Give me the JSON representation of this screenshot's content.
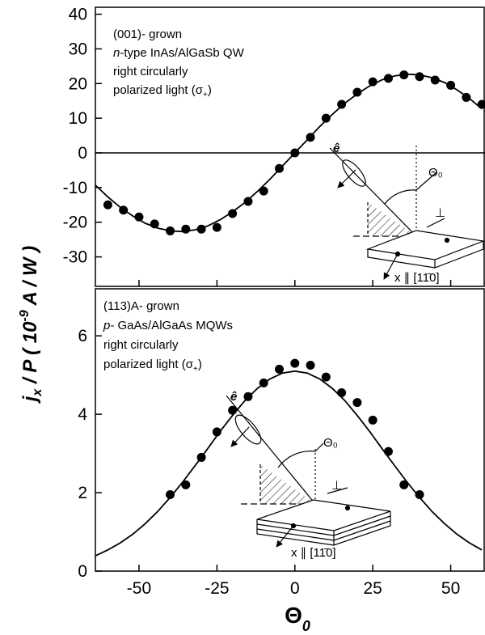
{
  "chart_data": [
    {
      "type": "scatter",
      "annotation": [
        [
          "(001)- grown"
        ],
        [
          "n",
          "-type InAs/AlGaSb QW"
        ],
        [
          "right circularly"
        ],
        [
          "polarized light (σ",
          "+",
          ")"
        ]
      ],
      "inset": {
        "e": "ê",
        "theta": "Θ₀",
        "perp": "⊥",
        "axis": "x ∥ [11̄0]"
      },
      "x": [
        -60,
        -55,
        -50,
        -45,
        -40,
        -35,
        -30,
        -25,
        -20,
        -15,
        -10,
        -5,
        0,
        5,
        10,
        15,
        20,
        25,
        30,
        35,
        40,
        45,
        50,
        55,
        60
      ],
      "values": [
        -15,
        -16.5,
        -18.5,
        -20.5,
        -22.5,
        -22,
        -22,
        -21.5,
        -17.5,
        -14,
        -11,
        -4.5,
        0,
        4.5,
        10,
        14,
        17.5,
        20.5,
        21.5,
        22.5,
        22,
        21,
        19.5,
        16,
        14
      ],
      "fit": {
        "x": [
          -64,
          -60,
          -56,
          -52,
          -48,
          -44,
          -40,
          -36,
          -32,
          -28,
          -24,
          -20,
          -16,
          -12,
          -8,
          -4,
          0,
          4,
          8,
          12,
          16,
          20,
          24,
          28,
          32,
          36,
          40,
          44,
          48,
          52,
          56,
          60
        ],
        "values": [
          -9.3,
          -12.7,
          -15.7,
          -18.2,
          -20.3,
          -21.7,
          -22.5,
          -22.7,
          -22.2,
          -21.1,
          -19.3,
          -17.0,
          -14.3,
          -11.1,
          -7.6,
          -3.8,
          0,
          3.8,
          7.6,
          11.1,
          14.3,
          17.0,
          19.3,
          21.1,
          22.2,
          22.7,
          22.5,
          21.7,
          20.3,
          18.2,
          15.7,
          12.7
        ]
      },
      "hline": 0,
      "color": "#000000",
      "xlim": [
        -64,
        61
      ],
      "ylim": [
        -38.5,
        42
      ],
      "xticks": [
        -50,
        -25,
        0,
        25,
        50
      ],
      "yticks": [
        -30,
        -20,
        -10,
        0,
        10,
        20,
        30,
        40
      ]
    },
    {
      "type": "scatter",
      "annotation": [
        [
          "(113)A- grown"
        ],
        [
          "p",
          "- GaAs/AlGaAs MQWs"
        ],
        [
          "right circularly"
        ],
        [
          "polarized light (σ",
          "+",
          ")"
        ]
      ],
      "inset": {
        "e": "ê",
        "theta": "Θ₀",
        "perp": "⊥",
        "axis": "x ∥ [11̄0]"
      },
      "x": [
        -40,
        -35,
        -30,
        -25,
        -20,
        -15,
        -10,
        -5,
        0,
        5,
        10,
        15,
        20,
        25,
        30,
        35,
        40
      ],
      "values": [
        1.95,
        2.2,
        2.9,
        3.55,
        4.1,
        4.45,
        4.8,
        5.15,
        5.3,
        5.25,
        4.95,
        4.55,
        4.3,
        3.85,
        3.05,
        2.2,
        1.95
      ],
      "fit": {
        "x": [
          -64,
          -60,
          -56,
          -52,
          -48,
          -44,
          -40,
          -36,
          -32,
          -28,
          -24,
          -20,
          -16,
          -12,
          -8,
          -4,
          0,
          4,
          8,
          12,
          16,
          20,
          24,
          28,
          32,
          36,
          40,
          44,
          48,
          52,
          56,
          60
        ],
        "values": [
          0.39,
          0.54,
          0.72,
          0.94,
          1.21,
          1.52,
          1.88,
          2.27,
          2.69,
          3.12,
          3.56,
          3.97,
          4.35,
          4.66,
          4.9,
          5.05,
          5.1,
          5.05,
          4.9,
          4.66,
          4.35,
          3.97,
          3.56,
          3.12,
          2.69,
          2.27,
          1.88,
          1.52,
          1.21,
          0.94,
          0.72,
          0.54
        ]
      },
      "color": "#000000",
      "xlim": [
        -64,
        61
      ],
      "ylim": [
        0,
        7.2
      ],
      "xticks": [
        -50,
        -25,
        0,
        25,
        50
      ],
      "yticks": [
        0,
        2,
        4,
        6
      ],
      "xlabel": [
        "Θ",
        "0"
      ],
      "ylabel": [
        "j",
        "x",
        " / P   ( 10",
        "-9",
        " A / W )"
      ]
    }
  ]
}
